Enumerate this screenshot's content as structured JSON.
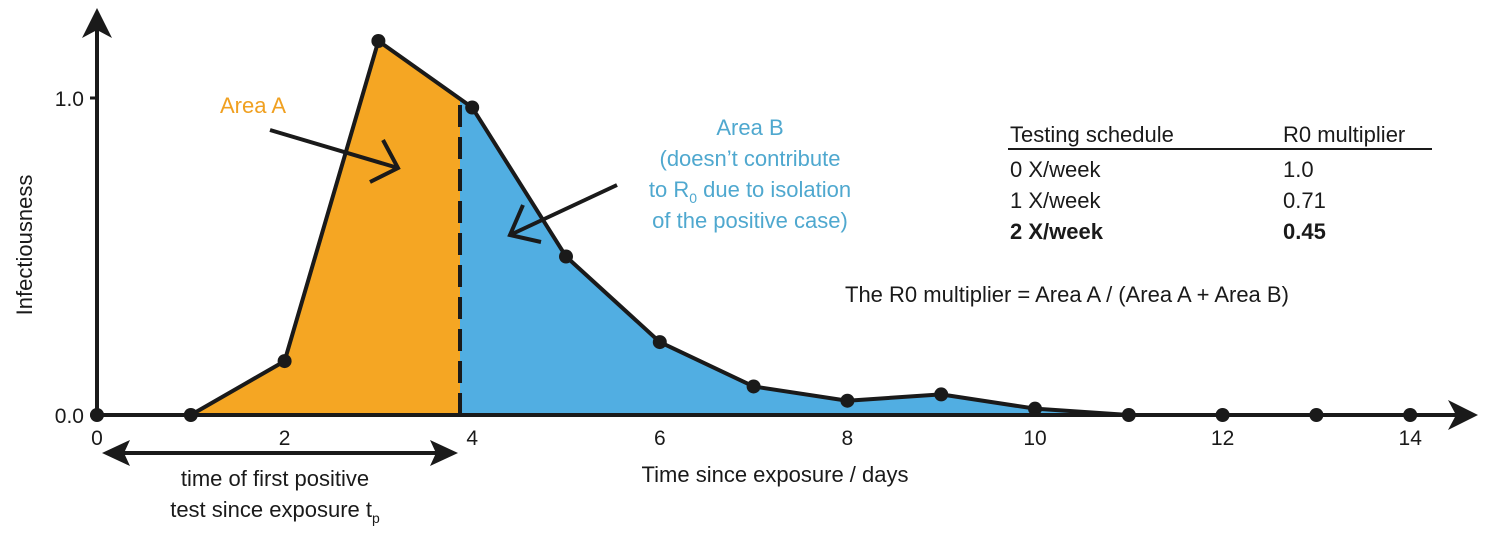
{
  "chart_data": {
    "type": "area",
    "xlabel": "Time since exposure / days",
    "ylabel": "Infectiousness",
    "xlim": [
      0,
      14.7
    ],
    "ylim": [
      0,
      1.3
    ],
    "x_ticks": [
      "0",
      "2",
      "4",
      "6",
      "8",
      "10",
      "12",
      "14"
    ],
    "x_tick_values": [
      0,
      2,
      4,
      6,
      8,
      10,
      12,
      14
    ],
    "y_ticks": [
      "0.0",
      "1.0"
    ],
    "y_tick_values": [
      0,
      1
    ],
    "grid": false,
    "x": [
      0,
      1,
      2,
      3,
      4,
      5,
      6,
      7,
      8,
      9,
      10,
      11,
      12,
      13,
      14
    ],
    "y": [
      0,
      0,
      0.17,
      1.18,
      0.97,
      0.5,
      0.23,
      0.09,
      0.045,
      0.065,
      0.02,
      0,
      0,
      0,
      0
    ],
    "split_x": 3.87,
    "colors": {
      "area_a": "#f5a623",
      "area_b": "#51aee2",
      "line": "#1a1a1a",
      "area_b_text": "#4fa8cf"
    },
    "annotations": {
      "area_a": "Area A",
      "area_b": [
        "Area B",
        "(doesn’t contribute",
        "to R",
        "0",
        " due to isolation",
        "of the positive case)"
      ],
      "tp": [
        "time of first positive",
        "test since exposure t",
        "p"
      ],
      "formula": "The R0 multiplier = Area A / (Area A + Area B)"
    },
    "table": {
      "headers": [
        "Testing schedule",
        "R0 multiplier"
      ],
      "rows": [
        [
          "0 X/week",
          "1.0"
        ],
        [
          "1 X/week",
          "0.71"
        ],
        [
          "2 X/week",
          "0.45"
        ]
      ],
      "bold_row": 2
    }
  }
}
